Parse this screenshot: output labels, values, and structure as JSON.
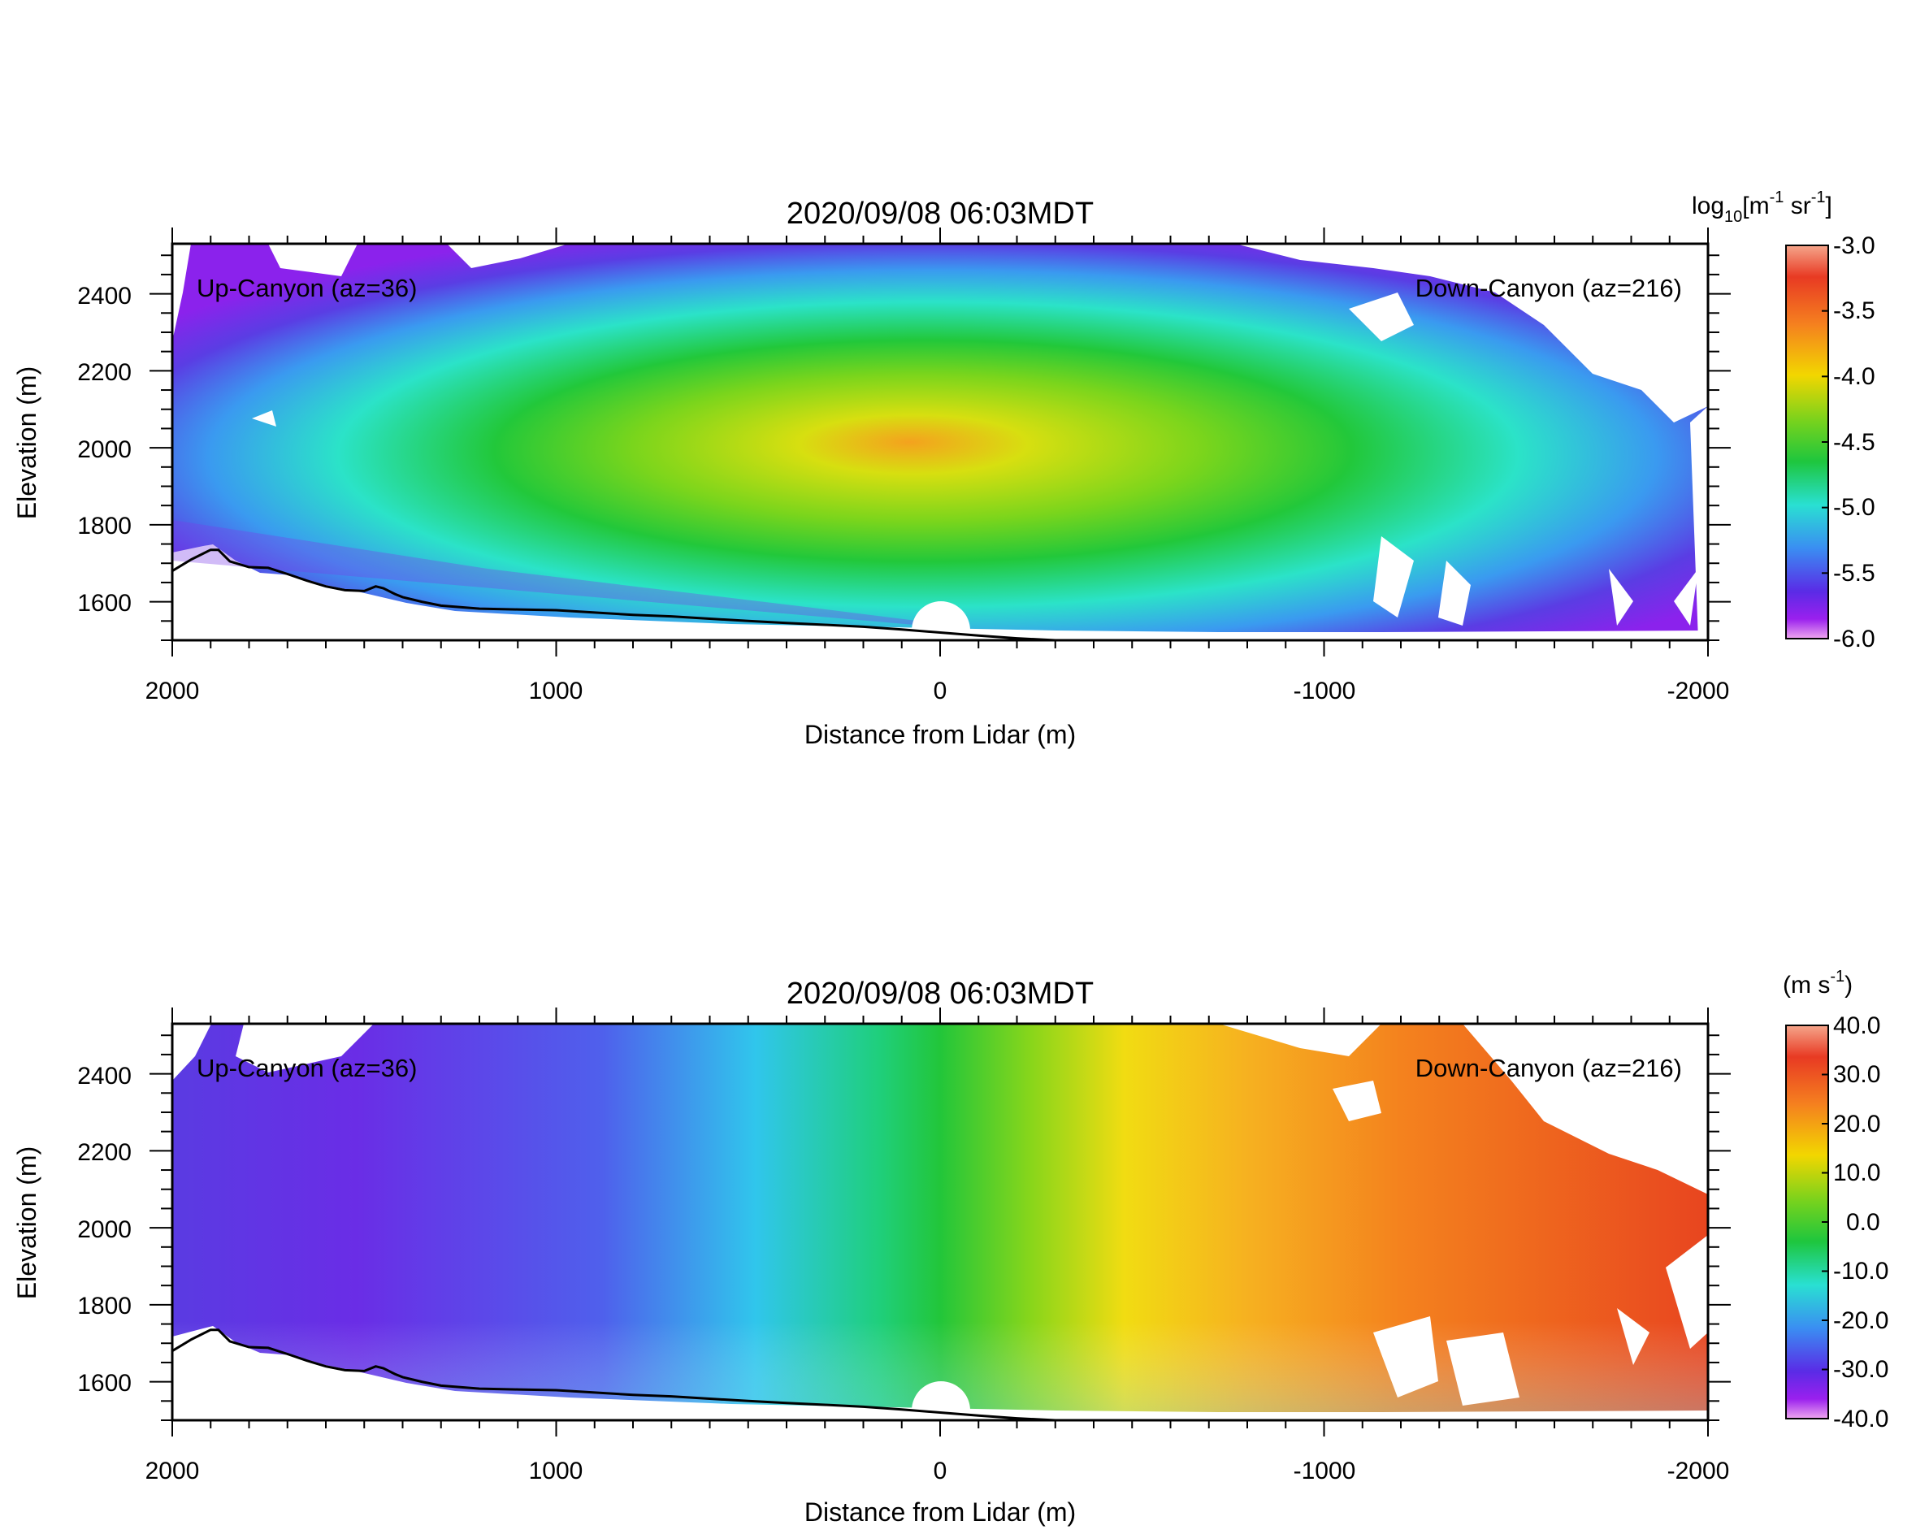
{
  "chart_data": [
    {
      "type": "heatmap",
      "title": "2020/09/08 06:03MDT",
      "xlabel": "Distance from Lidar (m)",
      "ylabel": "Elevation (m)",
      "xlim": [
        2000,
        -2000
      ],
      "ylim": [
        1500,
        2530
      ],
      "x_ticks": [
        "2000",
        "1000",
        "0",
        "-1000",
        "-2000"
      ],
      "y_ticks": [
        "1600",
        "1800",
        "2000",
        "2200",
        "2400"
      ],
      "annotations": [
        "Up-Canyon (az=36)",
        "Down-Canyon (az=216)"
      ],
      "colorbar": {
        "label_base": "log",
        "label_sub": "10",
        "label_units": "[m",
        "label_exp1": "-1",
        "label_mid": " sr",
        "label_exp2": "-1",
        "label_end": "]",
        "range": [
          -6.0,
          -3.0
        ],
        "ticks": [
          "-3.0",
          "-3.5",
          "-4.0",
          "-4.5",
          "-5.0",
          "-5.5",
          "-6.0"
        ]
      },
      "field": {
        "description": "aerosol backscatter, peak near lidar aloft, low values near canyon walls",
        "center_value": -4.0,
        "edge_value": -6.0
      }
    },
    {
      "type": "heatmap",
      "title": "2020/09/08 06:03MDT",
      "xlabel": "Distance from Lidar (m)",
      "ylabel": "Elevation (m)",
      "xlim": [
        2000,
        -2000
      ],
      "ylim": [
        1500,
        2530
      ],
      "x_ticks": [
        "2000",
        "1000",
        "0",
        "-1000",
        "-2000"
      ],
      "y_ticks": [
        "1600",
        "1800",
        "2000",
        "2200",
        "2400"
      ],
      "annotations": [
        "Up-Canyon (az=36)",
        "Down-Canyon (az=216)"
      ],
      "colorbar": {
        "label_base": "(m s",
        "label_exp1": "-1",
        "label_end": ")",
        "range": [
          -40.0,
          40.0
        ],
        "ticks": [
          "40.0",
          "30.0",
          "20.0",
          "10.0",
          "0.0",
          "-10.0",
          "-20.0",
          "-30.0",
          "-40.0"
        ]
      },
      "field": {
        "left_value": -28.0,
        "right_value": 28.0
      }
    }
  ],
  "terrain": {
    "x": [
      2000,
      1950,
      1900,
      1880,
      1850,
      1800,
      1750,
      1700,
      1650,
      1600,
      1550,
      1500,
      1470,
      1450,
      1420,
      1400,
      1350,
      1300,
      1200,
      1100,
      1000,
      900,
      800,
      700,
      600,
      500,
      400,
      300,
      200,
      100,
      0,
      -100,
      -200,
      -300
    ],
    "y": [
      1680,
      1710,
      1735,
      1735,
      1705,
      1690,
      1688,
      1672,
      1655,
      1640,
      1630,
      1628,
      1640,
      1635,
      1620,
      1612,
      1600,
      1590,
      1582,
      1580,
      1578,
      1572,
      1566,
      1562,
      1556,
      1550,
      1545,
      1540,
      1535,
      1528,
      1520,
      1512,
      1505,
      1500
    ]
  }
}
